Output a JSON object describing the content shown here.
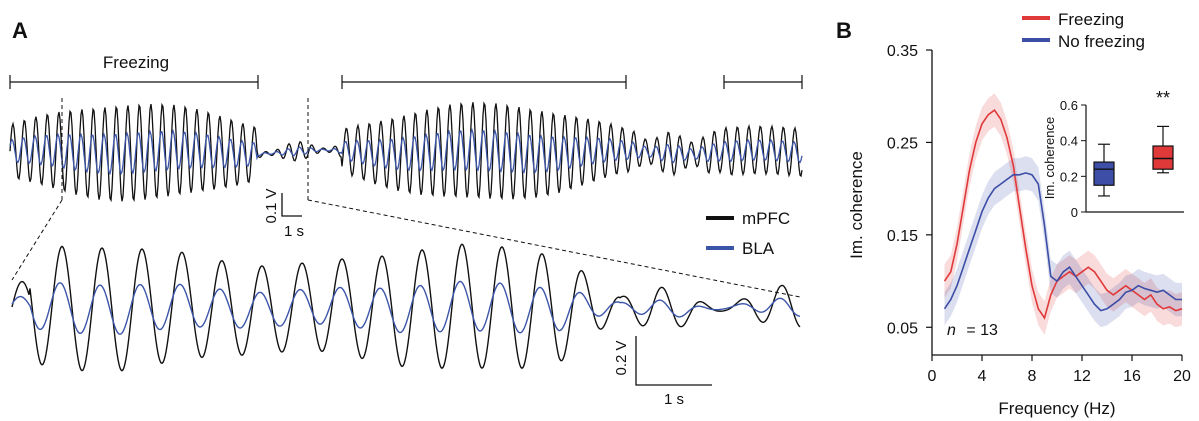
{
  "panel_a": {
    "label": "A",
    "freezing_label": "Freezing",
    "scale_top": {
      "v": "0.1 V",
      "t": "1 s"
    },
    "scale_bottom": {
      "v": "0.2 V",
      "t": "1 s"
    },
    "legend": [
      {
        "name": "mPFC",
        "color": "#111111"
      },
      {
        "name": "BLA",
        "color": "#3b55a8"
      }
    ]
  },
  "panel_b": {
    "label": "B",
    "n_label": "n",
    "n_value": "= 13"
  },
  "colors": {
    "freezing": "#e0393a",
    "no_freezing": "#3c4ea6",
    "black": "#111111",
    "blue": "#3b55a8"
  },
  "chart_data": [
    {
      "type": "line",
      "xlabel": "Frequency (Hz)",
      "ylabel": "Im. coherence",
      "xlim": [
        0,
        20
      ],
      "ylim": [
        0.02,
        0.35
      ],
      "xticks": [
        "0",
        "4",
        "8",
        "12",
        "16",
        "20"
      ],
      "yticks": [
        "0.05",
        "0.15",
        "0.25",
        "0.35"
      ],
      "legend_position": "top-right",
      "x": [
        1,
        1.5,
        2,
        2.5,
        3,
        3.5,
        4,
        4.5,
        5,
        5.5,
        6,
        6.5,
        7,
        7.5,
        8,
        8.5,
        9,
        9.5,
        10,
        10.5,
        11,
        11.5,
        12,
        12.5,
        13,
        13.5,
        14,
        14.5,
        15,
        15.5,
        16,
        16.5,
        17,
        17.5,
        18,
        18.5,
        19,
        19.5,
        20
      ],
      "series": [
        {
          "name": "Freezing",
          "color": "#e0393a",
          "values": [
            0.1,
            0.11,
            0.14,
            0.18,
            0.22,
            0.25,
            0.27,
            0.28,
            0.285,
            0.275,
            0.255,
            0.225,
            0.18,
            0.135,
            0.095,
            0.07,
            0.06,
            0.085,
            0.1,
            0.105,
            0.11,
            0.105,
            0.11,
            0.115,
            0.11,
            0.1,
            0.09,
            0.085,
            0.09,
            0.095,
            0.09,
            0.085,
            0.08,
            0.085,
            0.075,
            0.07,
            0.072,
            0.068,
            0.07
          ]
        },
        {
          "name": "No freezing",
          "color": "#3c4ea6",
          "values": [
            0.07,
            0.08,
            0.095,
            0.115,
            0.135,
            0.155,
            0.175,
            0.19,
            0.2,
            0.205,
            0.21,
            0.215,
            0.215,
            0.217,
            0.215,
            0.205,
            0.16,
            0.105,
            0.1,
            0.11,
            0.115,
            0.105,
            0.095,
            0.085,
            0.075,
            0.068,
            0.07,
            0.075,
            0.08,
            0.088,
            0.09,
            0.095,
            0.092,
            0.09,
            0.088,
            0.09,
            0.085,
            0.08,
            0.08
          ]
        }
      ],
      "annotation": "n = 13"
    },
    {
      "type": "box",
      "ylabel": "Im. coherence",
      "ylim": [
        0,
        0.6
      ],
      "yticks": [
        "0",
        "0.2",
        "0.4",
        "0.6"
      ],
      "significance": "**",
      "series": [
        {
          "name": "No freezing",
          "color": "#3c4ea6",
          "min": 0.09,
          "q1": 0.15,
          "median": 0.24,
          "q3": 0.28,
          "max": 0.38
        },
        {
          "name": "Freezing",
          "color": "#e0393a",
          "min": 0.22,
          "q1": 0.24,
          "median": 0.3,
          "q3": 0.37,
          "max": 0.48
        }
      ]
    }
  ]
}
